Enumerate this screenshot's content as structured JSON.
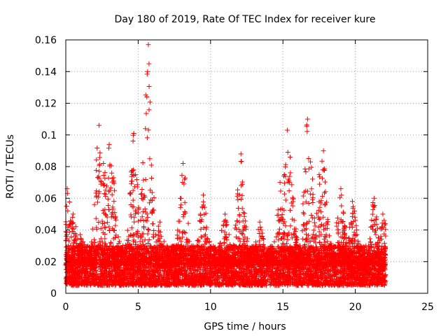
{
  "chart_data": {
    "type": "scatter",
    "title": "Day 180 of 2019, Rate Of TEC Index for receiver kure",
    "xlabel": "GPS time / hours",
    "ylabel": "ROTI / TECUs",
    "xlim": [
      0,
      25
    ],
    "ylim": [
      0,
      0.16
    ],
    "xticks": [
      0,
      5,
      10,
      15,
      20,
      25
    ],
    "xtick_labels": [
      "0",
      "5",
      "10",
      "15",
      "20",
      "25"
    ],
    "yticks": [
      0,
      0.02,
      0.04,
      0.06,
      0.08,
      0.1,
      0.12,
      0.14,
      0.16
    ],
    "ytick_labels": [
      "0",
      "0.02",
      "0.04",
      "0.06",
      "0.08",
      "0.1",
      "0.12",
      "0.14",
      "0.16"
    ],
    "grid": true,
    "marker": "+",
    "marker_color": "#ff0000",
    "series": [
      {
        "name": "ROTI",
        "x_range": [
          0,
          22.1
        ],
        "typical_band": [
          0.005,
          0.03
        ],
        "peaks": [
          {
            "x": 0.1,
            "y": 0.066
          },
          {
            "x": 0.5,
            "y": 0.05
          },
          {
            "x": 1.0,
            "y": 0.037
          },
          {
            "x": 2.3,
            "y": 0.106
          },
          {
            "x": 2.6,
            "y": 0.082
          },
          {
            "x": 3.0,
            "y": 0.094
          },
          {
            "x": 3.3,
            "y": 0.073
          },
          {
            "x": 4.7,
            "y": 0.101
          },
          {
            "x": 5.5,
            "y": 0.104
          },
          {
            "x": 5.7,
            "y": 0.157
          },
          {
            "x": 5.65,
            "y": 0.14
          },
          {
            "x": 5.6,
            "y": 0.124
          },
          {
            "x": 5.8,
            "y": 0.085
          },
          {
            "x": 6.5,
            "y": 0.045
          },
          {
            "x": 8.1,
            "y": 0.082
          },
          {
            "x": 9.5,
            "y": 0.062
          },
          {
            "x": 11.0,
            "y": 0.05
          },
          {
            "x": 12.1,
            "y": 0.088
          },
          {
            "x": 13.4,
            "y": 0.045
          },
          {
            "x": 14.8,
            "y": 0.07
          },
          {
            "x": 15.3,
            "y": 0.103
          },
          {
            "x": 15.5,
            "y": 0.086
          },
          {
            "x": 16.7,
            "y": 0.11
          },
          {
            "x": 16.9,
            "y": 0.083
          },
          {
            "x": 17.5,
            "y": 0.075
          },
          {
            "x": 17.8,
            "y": 0.09
          },
          {
            "x": 19.0,
            "y": 0.066
          },
          {
            "x": 19.8,
            "y": 0.058
          },
          {
            "x": 21.3,
            "y": 0.06
          },
          {
            "x": 21.9,
            "y": 0.05
          }
        ]
      }
    ]
  }
}
